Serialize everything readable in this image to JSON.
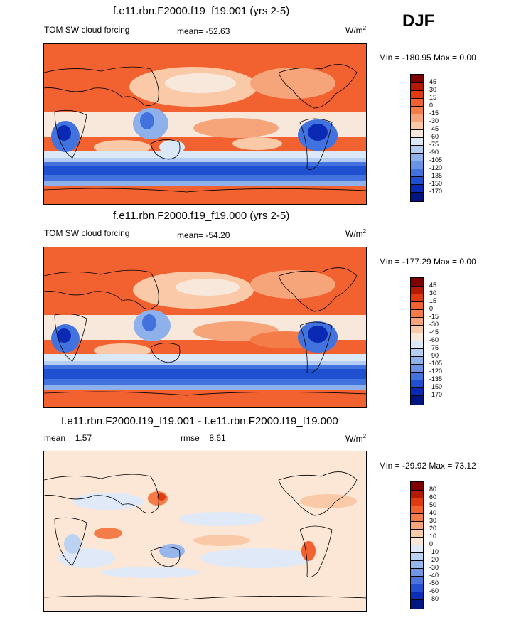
{
  "season": "DJF",
  "units": "W/m",
  "units_exp": "2",
  "panels": [
    {
      "title": "f.e11.rbn.F2000.f19_f19.001 (yrs 2-5)",
      "left_label": "TOM SW cloud forcing",
      "mid_label": "mean= -52.63",
      "minmax": "Min = -180.95 Max =   0.00",
      "levels": [
        "45",
        "30",
        "15",
        "0",
        "-15",
        "-30",
        "-45",
        "-60",
        "-75",
        "-90",
        "-105",
        "-120",
        "-135",
        "-150",
        "-170"
      ]
    },
    {
      "title": "f.e11.rbn.F2000.f19_f19.000 (yrs 2-5)",
      "left_label": "TOM SW cloud forcing",
      "mid_label": "mean= -54.20",
      "minmax": "Min = -177.29 Max =   0.00",
      "levels": [
        "45",
        "30",
        "15",
        "0",
        "-15",
        "-30",
        "-45",
        "-60",
        "-75",
        "-90",
        "-105",
        "-120",
        "-135",
        "-150",
        "-170"
      ]
    },
    {
      "title": "f.e11.rbn.F2000.f19_f19.001 - f.e11.rbn.F2000.f19_f19.000",
      "left_label": "mean =   1.57",
      "mid_label": "rmse =   8.61",
      "minmax": "Min = -29.92 Max =  73.12",
      "levels": [
        "80",
        "60",
        "50",
        "40",
        "30",
        "20",
        "10",
        "0",
        "-10",
        "-20",
        "-30",
        "-40",
        "-50",
        "-60",
        "-80"
      ]
    }
  ],
  "colors": {
    "abs_scale": [
      "#800000",
      "#b31a00",
      "#e03a10",
      "#f26230",
      "#f47c48",
      "#f6a47a",
      "#f9c9a8",
      "#f8e8dc",
      "#dbe8f8",
      "#b5cdf2",
      "#8eb1ec",
      "#6a93e5",
      "#4272dd",
      "#1e50d0",
      "#0a2ab3",
      "#001580"
    ],
    "diff_scale": [
      "#800000",
      "#b31a00",
      "#e03a10",
      "#f26230",
      "#f47c48",
      "#f6a47a",
      "#f9c9a8",
      "#fce6d6",
      "#dfe9f8",
      "#bcd2f2",
      "#96b6ec",
      "#6f95e4",
      "#4a73dc",
      "#2450d0",
      "#0c2db6",
      "#001580"
    ]
  }
}
